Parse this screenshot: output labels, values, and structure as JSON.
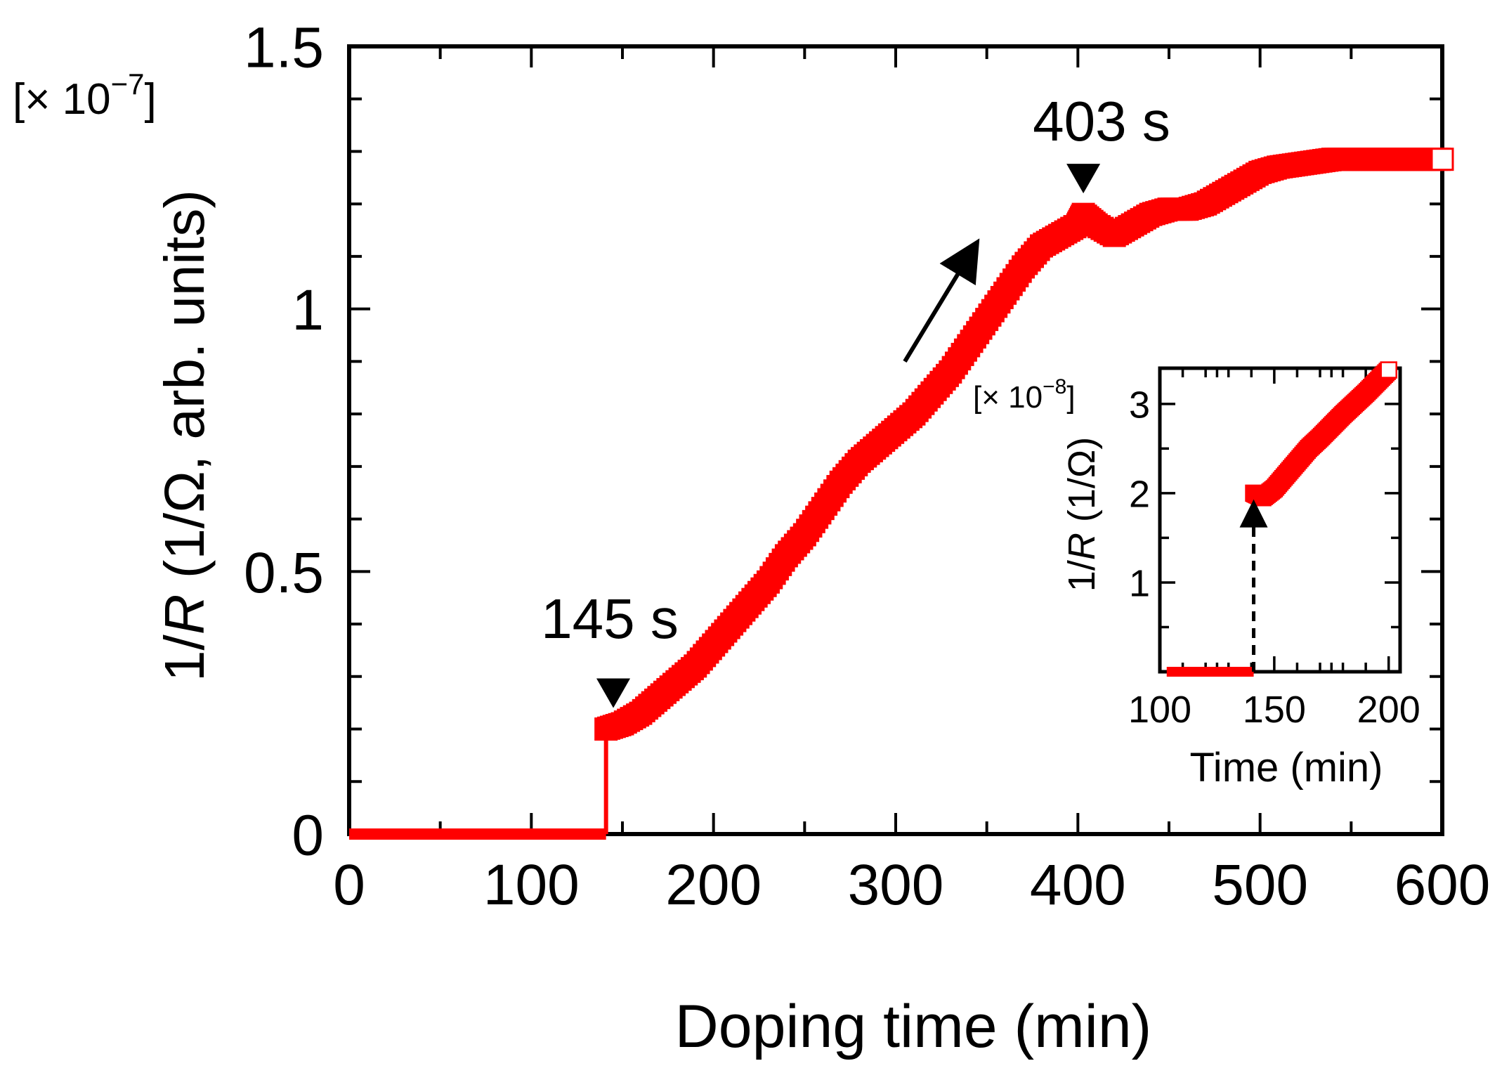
{
  "chart_data": [
    {
      "type": "scatter",
      "title": "",
      "xlabel": "Doping time (min)",
      "ylabel_prefix": "1/",
      "ylabel_italic": "R",
      "ylabel_suffix": " (1/Ω, arb. units)",
      "y_scale_label_prefix": "[× 10",
      "y_scale_label_exponent": "−7",
      "y_scale_label_suffix": "]",
      "xlim": [
        0,
        600
      ],
      "ylim": [
        0,
        1.5
      ],
      "x_ticks": [
        0,
        100,
        200,
        300,
        400,
        500,
        600
      ],
      "x_tick_labels": [
        "0",
        "100",
        "200",
        "300",
        "400",
        "500",
        "600"
      ],
      "y_ticks": [
        0,
        0.5,
        1,
        1.5
      ],
      "y_tick_labels": [
        "0",
        "0.5",
        "1",
        "1.5"
      ],
      "grid": false,
      "color": "#ff0000",
      "series": [
        {
          "name": "baseline",
          "style": "line",
          "x": [
            0,
            141
          ],
          "y": [
            0,
            0
          ]
        },
        {
          "name": "jump",
          "style": "line",
          "x": [
            141,
            141
          ],
          "y": [
            0,
            0.195
          ]
        },
        {
          "name": "1/R",
          "style": "squares",
          "x": [
            141,
            150,
            160,
            170,
            180,
            190,
            200,
            210,
            220,
            230,
            240,
            250,
            260,
            270,
            280,
            290,
            300,
            310,
            320,
            330,
            340,
            350,
            360,
            370,
            380,
            390,
            400,
            403,
            410,
            420,
            430,
            440,
            450,
            460,
            470,
            480,
            490,
            500,
            510,
            520,
            530,
            540,
            550,
            560,
            570,
            580,
            590,
            600
          ],
          "y": [
            0.2,
            0.21,
            0.23,
            0.26,
            0.29,
            0.32,
            0.36,
            0.4,
            0.44,
            0.48,
            0.53,
            0.57,
            0.62,
            0.67,
            0.71,
            0.74,
            0.77,
            0.8,
            0.84,
            0.88,
            0.93,
            0.98,
            1.03,
            1.08,
            1.12,
            1.14,
            1.16,
            1.18,
            1.16,
            1.14,
            1.16,
            1.18,
            1.19,
            1.19,
            1.2,
            1.22,
            1.24,
            1.26,
            1.27,
            1.275,
            1.28,
            1.285,
            1.285,
            1.285,
            1.285,
            1.285,
            1.285,
            1.285
          ]
        }
      ],
      "annotations": [
        {
          "text": "145 s",
          "x": 145,
          "y": 0.2,
          "marker": "down-triangle"
        },
        {
          "text": "403 s",
          "x": 403,
          "y": 1.18,
          "marker": "down-triangle"
        }
      ],
      "trend_arrow": {
        "from": [
          305,
          0.9
        ],
        "to": [
          340,
          1.1
        ]
      }
    },
    {
      "type": "scatter",
      "title": "",
      "xlabel": "Time (min)",
      "ylabel_prefix": "1/",
      "ylabel_italic": "R",
      "ylabel_suffix": " (1/Ω)",
      "y_scale_label_prefix": "[× 10",
      "y_scale_label_exponent": "−8",
      "y_scale_label_suffix": "]",
      "xlim": [
        100,
        205
      ],
      "ylim": [
        0,
        3.4
      ],
      "x_ticks": [
        100,
        150,
        200
      ],
      "x_tick_labels": [
        "100",
        "150",
        "200"
      ],
      "y_ticks": [
        1,
        2,
        3
      ],
      "y_tick_labels": [
        "1",
        "2",
        "3"
      ],
      "grid": false,
      "color": "#ff0000",
      "series": [
        {
          "name": "baseline",
          "style": "line",
          "x": [
            103,
            141
          ],
          "y": [
            0,
            0
          ]
        },
        {
          "name": "1/R",
          "style": "squares",
          "x": [
            141,
            145,
            150,
            155,
            160,
            165,
            170,
            175,
            180,
            185,
            190,
            195,
            200
          ],
          "y": [
            2.0,
            1.95,
            2.05,
            2.2,
            2.35,
            2.5,
            2.62,
            2.75,
            2.88,
            3.0,
            3.12,
            3.25,
            3.38
          ]
        }
      ],
      "annotation_arrow": {
        "x": 141,
        "y_from": 0,
        "y_to": 1.9,
        "style": "dashed"
      }
    }
  ]
}
